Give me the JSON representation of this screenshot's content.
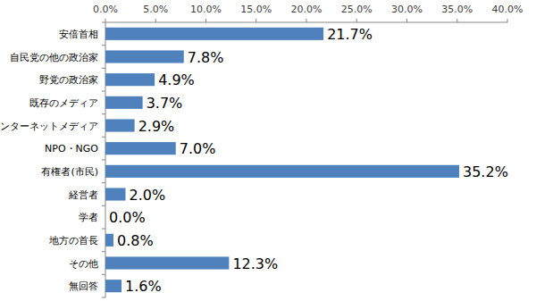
{
  "chart_data": {
    "type": "bar",
    "orientation": "horizontal",
    "categories": [
      "安倍首相",
      "自民党の他の政治家",
      "野党の政治家",
      "既存のメディア",
      "インターネットメディア",
      "NPO・NGO",
      "有権者(市民)",
      "経営者",
      "学者",
      "地方の首長",
      "その他",
      "無回答"
    ],
    "values": [
      21.7,
      7.8,
      4.9,
      3.7,
      2.9,
      7.0,
      35.2,
      2.0,
      0.0,
      0.8,
      12.3,
      1.6
    ],
    "value_labels": [
      "21.7%",
      "7.8%",
      "4.9%",
      "3.7%",
      "2.9%",
      "7.0%",
      "35.2%",
      "2.0%",
      "0.0%",
      "0.8%",
      "12.3%",
      "1.6%"
    ],
    "data_labels": true,
    "color": "#4f81bd",
    "xlim": [
      0,
      40
    ],
    "xticks": [
      {
        "value": 0,
        "label": "0.0%"
      },
      {
        "value": 5,
        "label": "5.0%"
      },
      {
        "value": 10,
        "label": "10.0%"
      },
      {
        "value": 15,
        "label": "15.0%"
      },
      {
        "value": 20,
        "label": "20.0%"
      },
      {
        "value": 25,
        "label": "25.0%"
      },
      {
        "value": 30,
        "label": "30.0%"
      },
      {
        "value": 35,
        "label": "35.0%"
      },
      {
        "value": 40,
        "label": "40.0%"
      }
    ],
    "grid": false
  }
}
